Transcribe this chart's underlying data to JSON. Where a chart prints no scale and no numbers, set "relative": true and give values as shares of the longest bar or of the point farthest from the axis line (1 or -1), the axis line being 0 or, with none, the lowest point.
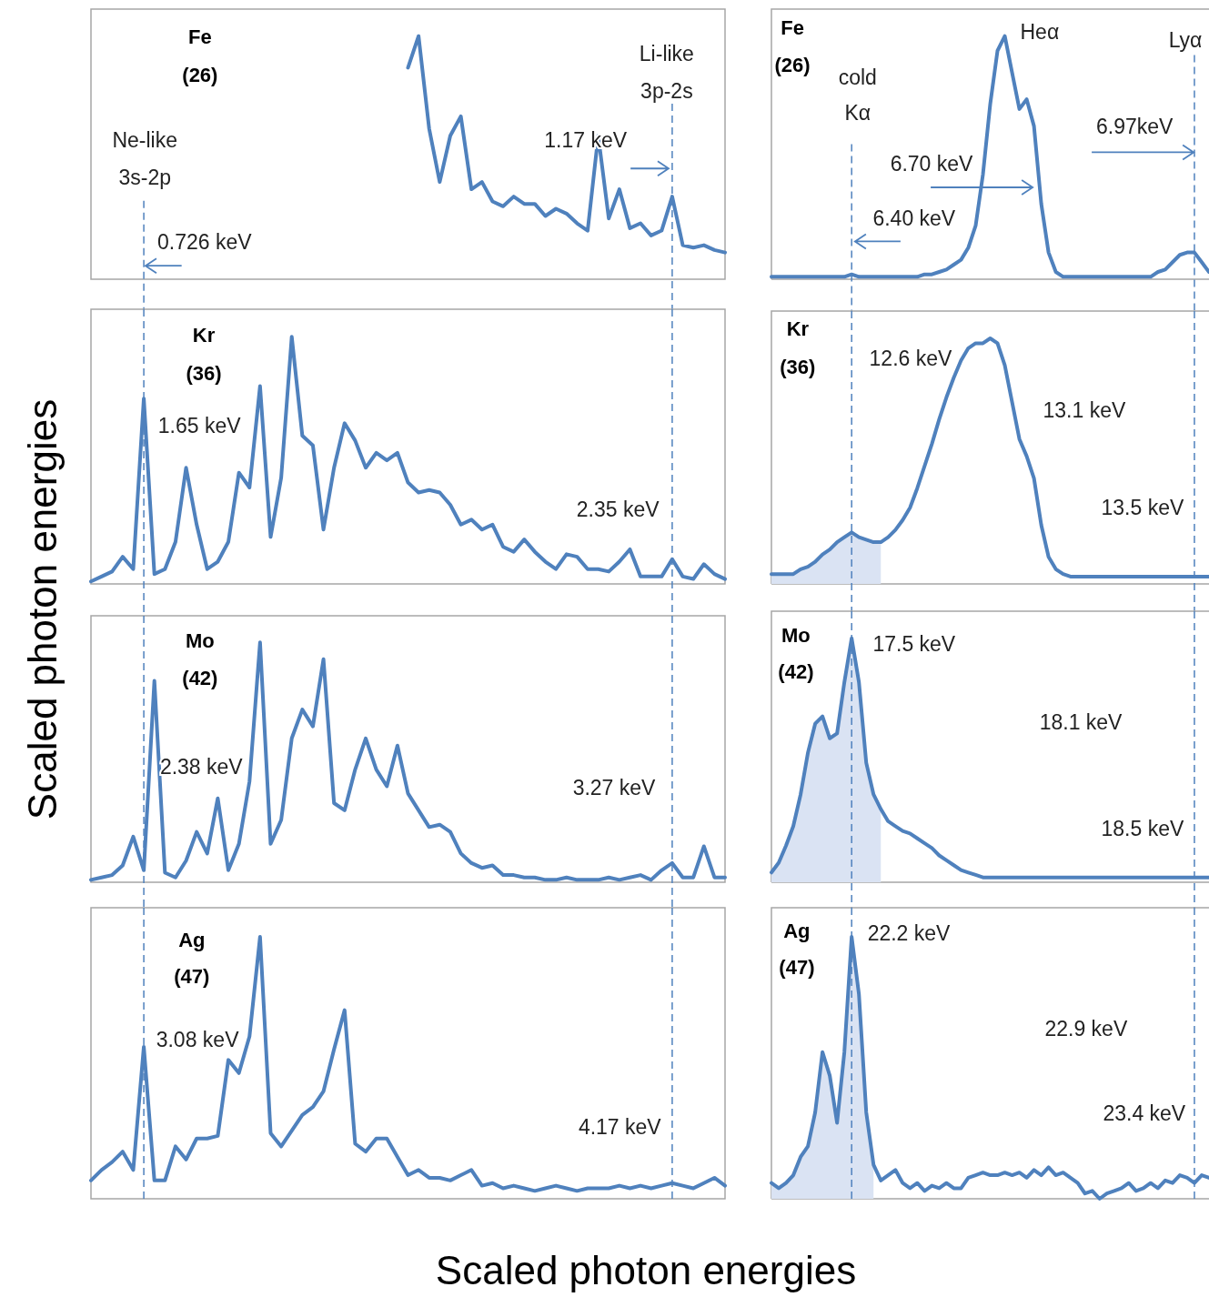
{
  "chart_data": [
    {
      "type": "line",
      "relative": true,
      "title": "Fe",
      "subtitle": "(26)",
      "ylabel": "Scaled photon energies",
      "categories": [
        null,
        null,
        null,
        null,
        null,
        null,
        null,
        null,
        null,
        null,
        null,
        null,
        null,
        null,
        null,
        null,
        null,
        null,
        null,
        null,
        null,
        null,
        null,
        null,
        null,
        null,
        null,
        null,
        null,
        null,
        null,
        null,
        null,
        null,
        null,
        null,
        null,
        null,
        null,
        null,
        null,
        null,
        null,
        null,
        null,
        null,
        null,
        null,
        null,
        null,
        null,
        null,
        null,
        null,
        null,
        null,
        null,
        null,
        null,
        null,
        null
      ],
      "series": [
        {
          "color": "#4f81bd",
          "values": [
            null,
            null,
            null,
            null,
            null,
            null,
            null,
            null,
            null,
            null,
            null,
            null,
            null,
            null,
            null,
            null,
            null,
            null,
            null,
            null,
            null,
            null,
            null,
            null,
            null,
            null,
            null,
            null,
            null,
            null,
            0.87,
            1.0,
            0.62,
            0.4,
            0.59,
            0.67,
            0.37,
            0.4,
            0.32,
            0.3,
            0.34,
            0.31,
            0.31,
            0.26,
            0.29,
            0.27,
            0.23,
            0.2,
            0.59,
            0.25,
            0.37,
            0.21,
            0.23,
            0.18,
            0.2,
            0.34,
            0.14,
            0.13,
            0.14,
            0.12,
            0.11
          ]
        }
      ],
      "annotations": [
        "Ne-like",
        "3s-2p",
        "0.726 keV",
        "Li-like",
        "3p-2s",
        "1.17 keV"
      ]
    },
    {
      "type": "line",
      "relative": true,
      "title": "Fe",
      "subtitle": "(26)",
      "categories": [
        null,
        null,
        null,
        null,
        null,
        null,
        null,
        null,
        null,
        null,
        null,
        null,
        null,
        null,
        null,
        null,
        null,
        null,
        null,
        null,
        null,
        null,
        null,
        null,
        null,
        null,
        null,
        null,
        null,
        null,
        null,
        null,
        null,
        null,
        null,
        null,
        null,
        null,
        null,
        null,
        null,
        null,
        null,
        null,
        null,
        null,
        null,
        null,
        null,
        null,
        null,
        null,
        null,
        null,
        null,
        null,
        null,
        null,
        null,
        null,
        null
      ],
      "series": [
        {
          "color": "#4f81bd",
          "values": [
            0.01,
            0.01,
            0.01,
            0.01,
            0.01,
            0.01,
            0.01,
            0.01,
            0.01,
            0.01,
            0.01,
            0.02,
            0.01,
            0.01,
            0.01,
            0.01,
            0.01,
            0.01,
            0.01,
            0.01,
            0.01,
            0.02,
            0.02,
            0.03,
            0.04,
            0.06,
            0.08,
            0.13,
            0.22,
            0.43,
            0.72,
            0.94,
            1.0,
            0.85,
            0.7,
            0.74,
            0.63,
            0.31,
            0.11,
            0.03,
            0.01,
            0.01,
            0.01,
            0.01,
            0.01,
            0.01,
            0.01,
            0.01,
            0.01,
            0.01,
            0.01,
            0.01,
            0.01,
            0.03,
            0.04,
            0.07,
            0.1,
            0.11,
            0.11,
            0.07,
            0.03
          ]
        }
      ],
      "annotations": [
        "cold",
        "Kα",
        "6.40 keV",
        "6.70 keV",
        "Heα",
        "6.97keV",
        "Lyα"
      ]
    },
    {
      "type": "line",
      "relative": true,
      "title": "Kr",
      "subtitle": "(36)",
      "categories": [
        null,
        null,
        null,
        null,
        null,
        null,
        null,
        null,
        null,
        null,
        null,
        null,
        null,
        null,
        null,
        null,
        null,
        null,
        null,
        null,
        null,
        null,
        null,
        null,
        null,
        null,
        null,
        null,
        null,
        null,
        null,
        null,
        null,
        null,
        null,
        null,
        null,
        null,
        null,
        null,
        null,
        null,
        null,
        null,
        null,
        null,
        null,
        null,
        null,
        null,
        null,
        null,
        null,
        null,
        null,
        null,
        null,
        null,
        null,
        null,
        null
      ],
      "series": [
        {
          "color": "#4f81bd",
          "values": [
            0.01,
            0.03,
            0.05,
            0.11,
            0.06,
            0.75,
            0.04,
            0.06,
            0.17,
            0.47,
            0.24,
            0.06,
            0.09,
            0.17,
            0.45,
            0.39,
            0.8,
            0.19,
            0.43,
            1.0,
            0.6,
            0.56,
            0.22,
            0.47,
            0.65,
            0.58,
            0.47,
            0.53,
            0.5,
            0.53,
            0.41,
            0.37,
            0.38,
            0.37,
            0.32,
            0.24,
            0.26,
            0.22,
            0.24,
            0.15,
            0.13,
            0.18,
            0.13,
            0.09,
            0.06,
            0.12,
            0.11,
            0.06,
            0.06,
            0.05,
            0.09,
            0.14,
            0.03,
            0.03,
            0.03,
            0.1,
            0.03,
            0.02,
            0.08,
            0.04,
            0.02
          ]
        }
      ],
      "annotations": [
        "1.65 keV",
        "2.35 keV"
      ]
    },
    {
      "type": "line",
      "relative": true,
      "title": "Kr",
      "subtitle": "(36)",
      "categories": [
        null,
        null,
        null,
        null,
        null,
        null,
        null,
        null,
        null,
        null,
        null,
        null,
        null,
        null,
        null,
        null,
        null,
        null,
        null,
        null,
        null,
        null,
        null,
        null,
        null,
        null,
        null,
        null,
        null,
        null,
        null,
        null,
        null,
        null,
        null,
        null,
        null,
        null,
        null,
        null,
        null,
        null,
        null,
        null,
        null,
        null,
        null,
        null,
        null,
        null,
        null,
        null,
        null,
        null,
        null,
        null,
        null,
        null,
        null,
        null,
        null
      ],
      "series": [
        {
          "type": "area",
          "color": "#dae3f3",
          "values": [
            0.04,
            0.04,
            0.04,
            0.04,
            0.06,
            0.07,
            0.09,
            0.12,
            0.14,
            0.17,
            0.19,
            0.21,
            0.19,
            0.18,
            0.17,
            0.17,
            null,
            null,
            null,
            null,
            null,
            null,
            null,
            null,
            null,
            null,
            null,
            null,
            null,
            null,
            null,
            null,
            null,
            null,
            null,
            null,
            null,
            null,
            null,
            null,
            null,
            null,
            null,
            null,
            null,
            null,
            null,
            null,
            null,
            null,
            null,
            null,
            null,
            null,
            null,
            null,
            null,
            null,
            null,
            null,
            null
          ]
        },
        {
          "color": "#4f81bd",
          "values": [
            0.04,
            0.04,
            0.04,
            0.04,
            0.06,
            0.07,
            0.09,
            0.12,
            0.14,
            0.17,
            0.19,
            0.21,
            0.19,
            0.18,
            0.17,
            0.17,
            0.19,
            0.22,
            0.26,
            0.31,
            0.39,
            0.48,
            0.57,
            0.67,
            0.76,
            0.84,
            0.91,
            0.96,
            0.98,
            0.98,
            1.0,
            0.98,
            0.89,
            0.74,
            0.59,
            0.52,
            0.43,
            0.24,
            0.11,
            0.06,
            0.04,
            0.03,
            0.03,
            0.03,
            0.03,
            0.03,
            0.03,
            0.03,
            0.03,
            0.03,
            0.03,
            0.03,
            0.03,
            0.03,
            0.03,
            0.03,
            0.03,
            0.03,
            0.03,
            0.03,
            0.03
          ]
        }
      ],
      "annotations": [
        "12.6 keV",
        "13.1 keV",
        "13.5 keV"
      ]
    },
    {
      "type": "line",
      "relative": true,
      "title": "Mo",
      "subtitle": "(42)",
      "categories": [
        null,
        null,
        null,
        null,
        null,
        null,
        null,
        null,
        null,
        null,
        null,
        null,
        null,
        null,
        null,
        null,
        null,
        null,
        null,
        null,
        null,
        null,
        null,
        null,
        null,
        null,
        null,
        null,
        null,
        null,
        null,
        null,
        null,
        null,
        null,
        null,
        null,
        null,
        null,
        null,
        null,
        null,
        null,
        null,
        null,
        null,
        null,
        null,
        null,
        null,
        null,
        null,
        null,
        null,
        null,
        null,
        null,
        null,
        null,
        null,
        null
      ],
      "series": [
        {
          "color": "#4f81bd",
          "values": [
            0.01,
            0.02,
            0.03,
            0.07,
            0.19,
            0.05,
            0.84,
            0.04,
            0.02,
            0.09,
            0.21,
            0.12,
            0.35,
            0.05,
            0.16,
            0.42,
            1.0,
            0.16,
            0.26,
            0.6,
            0.72,
            0.65,
            0.93,
            0.33,
            0.3,
            0.47,
            0.6,
            0.47,
            0.4,
            0.57,
            0.37,
            0.3,
            0.23,
            0.24,
            0.21,
            0.12,
            0.08,
            0.06,
            0.07,
            0.03,
            0.03,
            0.02,
            0.02,
            0.01,
            0.01,
            0.02,
            0.01,
            0.01,
            0.01,
            0.02,
            0.01,
            0.02,
            0.03,
            0.01,
            0.05,
            0.08,
            0.02,
            0.02,
            0.15,
            0.02,
            0.02
          ]
        }
      ],
      "annotations": [
        "2.38 keV",
        "3.27 keV"
      ]
    },
    {
      "type": "line",
      "relative": true,
      "title": "Mo",
      "subtitle": "(42)",
      "categories": [
        null,
        null,
        null,
        null,
        null,
        null,
        null,
        null,
        null,
        null,
        null,
        null,
        null,
        null,
        null,
        null,
        null,
        null,
        null,
        null,
        null,
        null,
        null,
        null,
        null,
        null,
        null,
        null,
        null,
        null,
        null,
        null,
        null,
        null,
        null,
        null,
        null,
        null,
        null,
        null,
        null,
        null,
        null,
        null,
        null,
        null,
        null,
        null,
        null,
        null,
        null,
        null,
        null,
        null,
        null,
        null,
        null,
        null,
        null,
        null,
        null
      ],
      "series": [
        {
          "type": "area",
          "color": "#dae3f3",
          "values": [
            0.04,
            0.08,
            0.15,
            0.23,
            0.36,
            0.53,
            0.65,
            0.68,
            0.59,
            0.61,
            0.82,
            1.0,
            0.82,
            0.49,
            0.36,
            0.3,
            null,
            null,
            null,
            null,
            null,
            null,
            null,
            null,
            null,
            null,
            null,
            null,
            null,
            null,
            null,
            null,
            null,
            null,
            null,
            null,
            null,
            null,
            null,
            null,
            null,
            null,
            null,
            null,
            null,
            null,
            null,
            null,
            null,
            null,
            null,
            null,
            null,
            null,
            null,
            null,
            null,
            null,
            null,
            null,
            null
          ]
        },
        {
          "color": "#4f81bd",
          "values": [
            0.04,
            0.08,
            0.15,
            0.23,
            0.36,
            0.53,
            0.65,
            0.68,
            0.59,
            0.61,
            0.82,
            1.0,
            0.82,
            0.49,
            0.36,
            0.3,
            0.25,
            0.23,
            0.21,
            0.2,
            0.18,
            0.16,
            0.14,
            0.11,
            0.09,
            0.07,
            0.05,
            0.04,
            0.03,
            0.02,
            0.02,
            0.02,
            0.02,
            0.02,
            0.02,
            0.02,
            0.02,
            0.02,
            0.02,
            0.02,
            0.02,
            0.02,
            0.02,
            0.02,
            0.02,
            0.02,
            0.02,
            0.02,
            0.02,
            0.02,
            0.02,
            0.02,
            0.02,
            0.02,
            0.02,
            0.02,
            0.02,
            0.02,
            0.02,
            0.02,
            0.02
          ]
        }
      ],
      "annotations": [
        "17.5 keV",
        "18.1 keV",
        "18.5 keV"
      ]
    },
    {
      "type": "line",
      "relative": true,
      "title": "Ag",
      "subtitle": "(47)",
      "xlabel": "Scaled photon energies",
      "categories": [
        null,
        null,
        null,
        null,
        null,
        null,
        null,
        null,
        null,
        null,
        null,
        null,
        null,
        null,
        null,
        null,
        null,
        null,
        null,
        null,
        null,
        null,
        null,
        null,
        null,
        null,
        null,
        null,
        null,
        null,
        null,
        null,
        null,
        null,
        null,
        null,
        null,
        null,
        null,
        null,
        null,
        null,
        null,
        null,
        null,
        null,
        null,
        null,
        null,
        null,
        null,
        null,
        null,
        null,
        null,
        null,
        null,
        null,
        null,
        null,
        null
      ],
      "series": [
        {
          "color": "#4f81bd",
          "values": [
            0.07,
            0.11,
            0.14,
            0.18,
            0.11,
            0.58,
            0.07,
            0.07,
            0.2,
            0.15,
            0.23,
            0.23,
            0.24,
            0.53,
            0.48,
            0.62,
            1.0,
            0.25,
            0.2,
            0.26,
            0.32,
            0.35,
            0.41,
            0.57,
            0.72,
            0.21,
            0.18,
            0.23,
            0.23,
            0.16,
            0.09,
            0.11,
            0.08,
            0.08,
            0.07,
            0.09,
            0.11,
            0.05,
            0.06,
            0.04,
            0.05,
            0.04,
            0.03,
            0.04,
            0.05,
            0.04,
            0.03,
            0.04,
            0.04,
            0.04,
            0.05,
            0.04,
            0.05,
            0.04,
            0.05,
            0.06,
            0.05,
            0.04,
            0.06,
            0.08,
            0.05
          ]
        }
      ],
      "annotations": [
        "3.08 keV",
        "4.17 keV"
      ]
    },
    {
      "type": "line",
      "relative": true,
      "title": "Ag",
      "subtitle": "(47)",
      "categories": [
        null,
        null,
        null,
        null,
        null,
        null,
        null,
        null,
        null,
        null,
        null,
        null,
        null,
        null,
        null,
        null,
        null,
        null,
        null,
        null,
        null,
        null,
        null,
        null,
        null,
        null,
        null,
        null,
        null,
        null,
        null,
        null,
        null,
        null,
        null,
        null,
        null,
        null,
        null,
        null,
        null,
        null,
        null,
        null,
        null,
        null,
        null,
        null,
        null,
        null,
        null,
        null,
        null,
        null,
        null,
        null,
        null,
        null,
        null,
        null,
        null
      ],
      "series": [
        {
          "type": "area",
          "color": "#dae3f3",
          "values": [
            0.06,
            0.04,
            0.06,
            0.09,
            0.16,
            0.2,
            0.33,
            0.56,
            0.47,
            0.29,
            0.56,
            1.0,
            0.78,
            0.33,
            0.13,
            null,
            null,
            null,
            null,
            null,
            null,
            null,
            null,
            null,
            null,
            null,
            null,
            null,
            null,
            null,
            null,
            null,
            null,
            null,
            null,
            null,
            null,
            null,
            null,
            null,
            null,
            null,
            null,
            null,
            null,
            null,
            null,
            null,
            null,
            null,
            null,
            null,
            null,
            null,
            null,
            null,
            null,
            null,
            null,
            null,
            null
          ]
        },
        {
          "color": "#4f81bd",
          "values": [
            0.06,
            0.04,
            0.06,
            0.09,
            0.16,
            0.2,
            0.33,
            0.56,
            0.47,
            0.29,
            0.56,
            1.0,
            0.78,
            0.33,
            0.13,
            0.07,
            0.09,
            0.11,
            0.06,
            0.04,
            0.06,
            0.03,
            0.05,
            0.04,
            0.06,
            0.04,
            0.04,
            0.08,
            0.09,
            0.1,
            0.09,
            0.09,
            0.1,
            0.09,
            0.1,
            0.08,
            0.11,
            0.09,
            0.12,
            0.09,
            0.1,
            0.08,
            0.06,
            0.02,
            0.03,
            0.0,
            0.02,
            0.03,
            0.04,
            0.06,
            0.03,
            0.04,
            0.06,
            0.04,
            0.07,
            0.06,
            0.09,
            0.08,
            0.06,
            0.09,
            0.08
          ]
        }
      ],
      "annotations": [
        "22.2 keV",
        "22.9 keV",
        "23.4 keV"
      ]
    }
  ]
}
